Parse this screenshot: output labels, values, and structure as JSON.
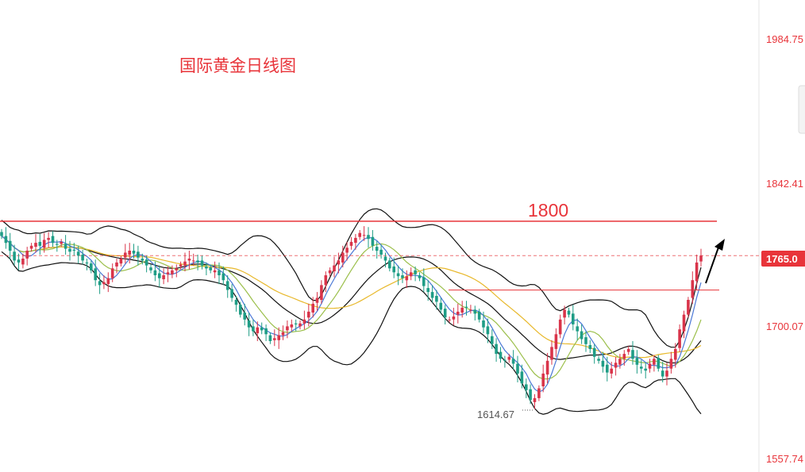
{
  "chart_data": {
    "type": "candlestick",
    "title": "国际黄金日线图",
    "yticks": [
      "1984.75",
      "1842.41",
      "1700.07",
      "1557.74"
    ],
    "ylim": [
      1557.74,
      1984.75
    ],
    "current_price": "1765.0",
    "level_1800_label": "1800",
    "resistance_1800": 1800,
    "resistance_2": 1730,
    "low_label": "1614.67",
    "low_value": 1614.67,
    "close_path": [
      1785,
      1778,
      1770,
      1760,
      1758,
      1762,
      1770,
      1775,
      1778,
      1775,
      1781,
      1783,
      1778,
      1776,
      1779,
      1772,
      1769,
      1770,
      1765,
      1760,
      1757,
      1750,
      1740,
      1735,
      1738,
      1742,
      1752,
      1758,
      1762,
      1768,
      1770,
      1767,
      1763,
      1760,
      1755,
      1750,
      1745,
      1742,
      1745,
      1748,
      1750,
      1752,
      1756,
      1759,
      1762,
      1760,
      1758,
      1755,
      1752,
      1750,
      1750,
      1745,
      1740,
      1730,
      1722,
      1715,
      1705,
      1700,
      1692,
      1688,
      1692,
      1689,
      1685,
      1678,
      1681,
      1684,
      1687,
      1693,
      1695,
      1695,
      1696,
      1700,
      1708,
      1716,
      1722,
      1735,
      1745,
      1750,
      1755,
      1760,
      1768,
      1773,
      1779,
      1783,
      1788,
      1786,
      1782,
      1775,
      1770,
      1766,
      1760,
      1752,
      1748,
      1744,
      1742,
      1744,
      1748,
      1746,
      1742,
      1734,
      1728,
      1722,
      1718,
      1710,
      1702,
      1700,
      1703,
      1708,
      1712,
      1712,
      1710,
      1706,
      1700,
      1692,
      1685,
      1675,
      1665,
      1660,
      1658,
      1662,
      1655,
      1645,
      1635,
      1628,
      1618,
      1620,
      1630,
      1645,
      1658,
      1672,
      1685,
      1700,
      1710,
      1705,
      1695,
      1688,
      1680,
      1675,
      1670,
      1662,
      1658,
      1652,
      1646,
      1650,
      1656,
      1660,
      1665,
      1670,
      1660,
      1654,
      1650,
      1648,
      1655,
      1660,
      1650,
      1642,
      1648,
      1660,
      1670,
      1690,
      1705,
      1720,
      1740,
      1758,
      1765
    ]
  }
}
